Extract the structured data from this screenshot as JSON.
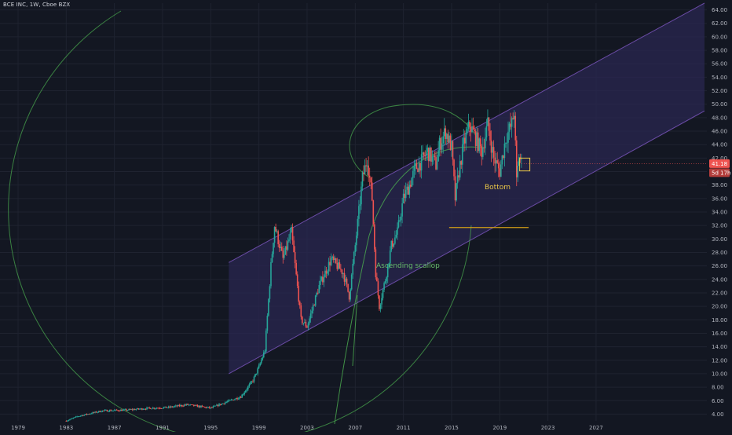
{
  "header": {
    "symbol": "BCE INC, 1W, Cboe BZX"
  },
  "colors": {
    "background": "#131722",
    "grid": "#1f2330",
    "axis_text": "#b2b5be",
    "candle_up": "#26a69a",
    "candle_down": "#ef5350",
    "channel_fill": "#2a2750",
    "channel_line": "#7e57c2",
    "scallop_line": "#4caf50",
    "annotation_bottom": "#e8c547",
    "annotation_scallop": "#66bb6a",
    "support_line": "#d4a017",
    "price_tag": "#ef5350"
  },
  "annotations": {
    "bottom": "Bottom",
    "ascending_scallop": "Ascending scallop"
  },
  "price_tags": {
    "last_price": "41.18",
    "countdown": "5d 17h"
  },
  "chart_data": {
    "type": "candlestick",
    "title": "BCE INC, 1W, Cboe BZX",
    "xlabel": "",
    "ylabel": "",
    "ylim": [
      3,
      65
    ],
    "xlim": [
      1977.5,
      2036.2
    ],
    "x_ticks": [
      "1979",
      "1983",
      "1987",
      "1991",
      "1995",
      "1999",
      "2003",
      "2007",
      "2011",
      "2015",
      "2019",
      "2023",
      "2027"
    ],
    "y_ticks": [
      "4.00",
      "6.00",
      "8.00",
      "10.00",
      "12.00",
      "14.00",
      "16.00",
      "18.00",
      "20.00",
      "22.00",
      "24.00",
      "26.00",
      "28.00",
      "30.00",
      "32.00",
      "34.00",
      "36.00",
      "38.00",
      "40.00",
      "42.00",
      "44.00",
      "46.00",
      "48.00",
      "50.00",
      "52.00",
      "54.00",
      "56.00",
      "58.00",
      "60.00",
      "62.00",
      "64.00"
    ],
    "grid": true,
    "last_price": 41.18,
    "price_path": [
      [
        1983.0,
        3.0
      ],
      [
        1984.0,
        3.7
      ],
      [
        1986.0,
        4.5
      ],
      [
        1988.0,
        4.6
      ],
      [
        1990.0,
        4.9
      ],
      [
        1991.5,
        5.0
      ],
      [
        1993.0,
        5.4
      ],
      [
        1995.0,
        4.9
      ],
      [
        1996.0,
        5.6
      ],
      [
        1997.5,
        6.6
      ],
      [
        1998.5,
        9.0
      ],
      [
        1999.0,
        11.0
      ],
      [
        1999.5,
        13.5
      ],
      [
        2000.0,
        26.0
      ],
      [
        2000.3,
        32.0
      ],
      [
        2001.0,
        27.0
      ],
      [
        2001.7,
        31.0
      ],
      [
        2002.5,
        18.0
      ],
      [
        2003.0,
        17.0
      ],
      [
        2004.0,
        23.0
      ],
      [
        2005.0,
        27.0
      ],
      [
        2006.0,
        25.0
      ],
      [
        2006.5,
        21.5
      ],
      [
        2007.0,
        29.0
      ],
      [
        2007.6,
        39.0
      ],
      [
        2008.0,
        42.0
      ],
      [
        2008.4,
        36.0
      ],
      [
        2008.7,
        25.0
      ],
      [
        2009.0,
        20.0
      ],
      [
        2009.5,
        24.0
      ],
      [
        2010.0,
        29.0
      ],
      [
        2010.5,
        31.0
      ],
      [
        2011.0,
        36.0
      ],
      [
        2011.5,
        38.0
      ],
      [
        2012.0,
        40.5
      ],
      [
        2012.5,
        41.5
      ],
      [
        2013.0,
        43.0
      ],
      [
        2013.7,
        41.0
      ],
      [
        2014.0,
        44.0
      ],
      [
        2014.5,
        46.0
      ],
      [
        2015.0,
        43.5
      ],
      [
        2015.3,
        36.0
      ],
      [
        2015.6,
        40.0
      ],
      [
        2016.0,
        44.0
      ],
      [
        2016.5,
        47.0
      ],
      [
        2017.0,
        45.0
      ],
      [
        2017.5,
        43.0
      ],
      [
        2018.0,
        47.0
      ],
      [
        2018.5,
        42.0
      ],
      [
        2019.0,
        40.0
      ],
      [
        2019.5,
        45.0
      ],
      [
        2020.0,
        47.0
      ],
      [
        2020.2,
        49.0
      ],
      [
        2020.4,
        38.5
      ],
      [
        2020.6,
        42.5
      ],
      [
        2020.8,
        41.18
      ]
    ],
    "channel": {
      "upper": [
        [
          1996.5,
          26.5
        ],
        [
          2036.0,
          65.0
        ]
      ],
      "lower": [
        [
          1996.5,
          10.0
        ],
        [
          2036.0,
          49.0
        ]
      ]
    },
    "support_line": {
      "y": 31.7,
      "x": [
        2014.8,
        2021.4
      ]
    },
    "bottom_box": {
      "x": [
        2020.65,
        2021.5
      ],
      "y": [
        40.1,
        42.0
      ]
    }
  }
}
